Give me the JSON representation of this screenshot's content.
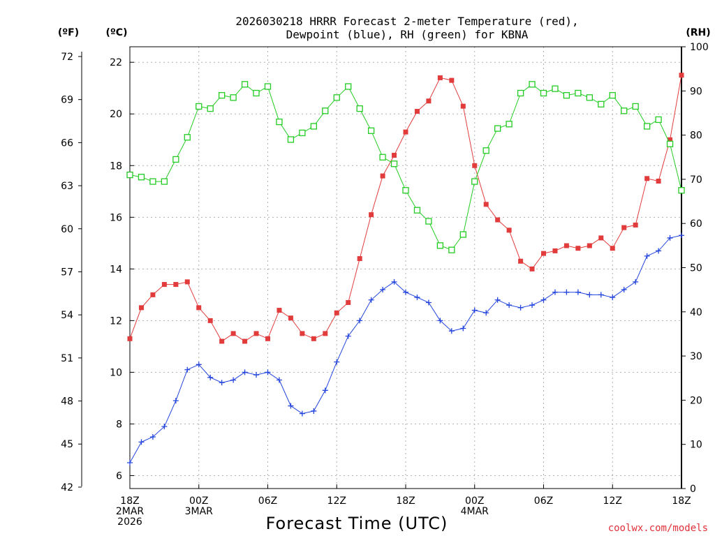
{
  "chart_data": {
    "type": "line",
    "title_line1": "2026030218 HRRR Forecast 2-meter Temperature (red),",
    "title_line2": "Dewpoint (blue), RH (green) for KBNA",
    "xlabel": "Forecast Time (UTC)",
    "credit": "coolwx.com/models",
    "left_outer_unit": "(ºF)",
    "left_inner_unit": "(ºC)",
    "right_unit": "(RH)",
    "fahrenheit_ticks": [
      "42",
      "45",
      "48",
      "51",
      "54",
      "57",
      "60",
      "63",
      "66",
      "69",
      "72"
    ],
    "celsius_ticks": [
      "6",
      "8",
      "10",
      "12",
      "14",
      "16",
      "18",
      "20",
      "22"
    ],
    "rh_ticks": [
      "0",
      "10",
      "20",
      "30",
      "40",
      "50",
      "60",
      "70",
      "80",
      "90",
      "100"
    ],
    "celsius_range": [
      5.5,
      22.6
    ],
    "rh_range": [
      0,
      100
    ],
    "hours_range": [
      0,
      48
    ],
    "x_ticks": [
      {
        "hour": 0,
        "lines": [
          "18Z",
          "2MAR",
          "2026"
        ]
      },
      {
        "hour": 6,
        "lines": [
          "00Z",
          "3MAR"
        ]
      },
      {
        "hour": 12,
        "lines": [
          "06Z"
        ]
      },
      {
        "hour": 18,
        "lines": [
          "12Z"
        ]
      },
      {
        "hour": 24,
        "lines": [
          "18Z"
        ]
      },
      {
        "hour": 30,
        "lines": [
          "00Z",
          "4MAR"
        ]
      },
      {
        "hour": 36,
        "lines": [
          "06Z"
        ]
      },
      {
        "hour": 42,
        "lines": [
          "12Z"
        ]
      },
      {
        "hour": 48,
        "lines": [
          "18Z"
        ]
      }
    ],
    "series": [
      {
        "name": "Temperature",
        "unit": "C",
        "color": "#e23b3b",
        "marker": "filled-square",
        "values": [
          11.3,
          12.5,
          13.0,
          13.4,
          13.4,
          13.5,
          12.5,
          12.0,
          11.2,
          11.5,
          11.2,
          11.5,
          11.3,
          12.4,
          12.1,
          11.5,
          11.3,
          11.5,
          12.3,
          12.7,
          14.4,
          16.1,
          17.6,
          18.4,
          19.3,
          20.1,
          20.5,
          21.4,
          21.3,
          20.3,
          18.0,
          16.5,
          15.9,
          15.5,
          14.3,
          14.0,
          14.6,
          14.7,
          14.9,
          14.8,
          14.9,
          15.2,
          14.8,
          15.6,
          15.7,
          17.5,
          17.4,
          19.0,
          21.5
        ]
      },
      {
        "name": "Dewpoint",
        "unit": "C",
        "color": "#2244dd",
        "marker": "plus",
        "values": [
          6.5,
          7.3,
          7.5,
          7.9,
          8.9,
          10.1,
          10.3,
          9.8,
          9.6,
          9.7,
          10.0,
          9.9,
          10.0,
          9.7,
          8.7,
          8.4,
          8.5,
          9.3,
          10.4,
          11.4,
          12.0,
          12.8,
          13.2,
          13.5,
          13.1,
          12.9,
          12.7,
          12.0,
          11.6,
          11.7,
          12.4,
          12.3,
          12.8,
          12.6,
          12.5,
          12.6,
          12.8,
          13.1,
          13.1,
          13.1,
          13.0,
          13.0,
          12.9,
          13.2,
          13.5,
          14.5,
          14.7,
          15.2,
          15.3
        ]
      },
      {
        "name": "RH",
        "unit": "%",
        "color": "#22cc22",
        "marker": "open-square",
        "values": [
          71,
          70.5,
          69.5,
          69.5,
          74.5,
          79.5,
          86.5,
          86,
          89,
          88.5,
          91.5,
          89.5,
          91,
          83,
          79,
          80.5,
          82,
          85.5,
          88.5,
          91,
          86,
          81,
          75,
          73.5,
          67.5,
          63,
          60.5,
          55,
          54,
          57.5,
          69.5,
          76.5,
          81.5,
          82.5,
          89.5,
          91.5,
          89.5,
          90.5,
          89,
          89.5,
          88.5,
          87,
          89,
          85.5,
          86.5,
          82,
          83.5,
          78,
          67.5
        ]
      }
    ]
  }
}
